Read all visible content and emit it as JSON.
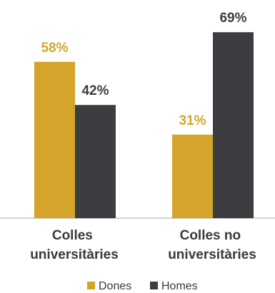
{
  "chart_data": {
    "type": "bar",
    "categories": [
      [
        "Colles",
        "universitàries"
      ],
      [
        "Colles no",
        "universitàries"
      ]
    ],
    "series": [
      {
        "name": "Dones",
        "values": [
          58,
          31
        ],
        "labels": [
          "58%",
          "31%"
        ],
        "color": "#D4A52A"
      },
      {
        "name": "Homes",
        "values": [
          42,
          69
        ],
        "labels": [
          "42%",
          "69%"
        ],
        "color": "#3B3D41"
      }
    ],
    "ylim": [
      0,
      100
    ],
    "grid": false,
    "legend_position": "bottom-center",
    "axis_color": "#A6A6A6",
    "title": "",
    "xlabel": "",
    "ylabel": ""
  }
}
